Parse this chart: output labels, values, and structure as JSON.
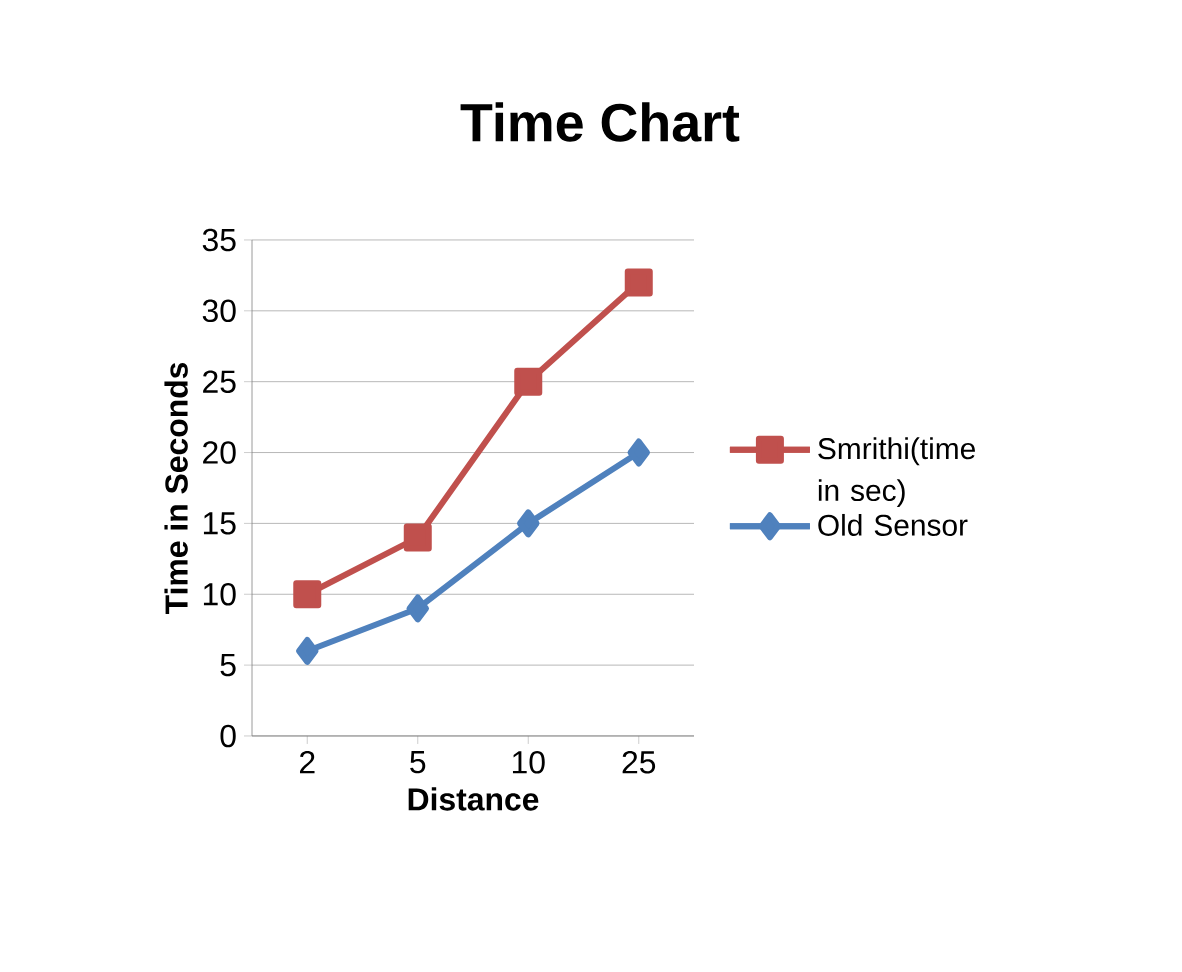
{
  "chart_data": {
    "type": "line",
    "title": "Time Chart",
    "xlabel": "Distance",
    "ylabel": "Time in Seconds",
    "categories": [
      "2",
      "5",
      "10",
      "25"
    ],
    "series": [
      {
        "name": "Smrithi(time in sec)",
        "color": "#c0504d",
        "values": [
          10,
          14,
          25,
          32
        ],
        "marker": "square"
      },
      {
        "name": "Old Sensor",
        "color": "#4f81bd",
        "values": [
          6,
          9,
          15,
          20
        ],
        "marker": "diamond"
      }
    ],
    "ylim": [
      0,
      35
    ],
    "yticks": [
      0,
      5,
      10,
      15,
      20,
      25,
      30,
      35
    ],
    "grid": "y",
    "legend": "right",
    "line_style": "solid"
  }
}
